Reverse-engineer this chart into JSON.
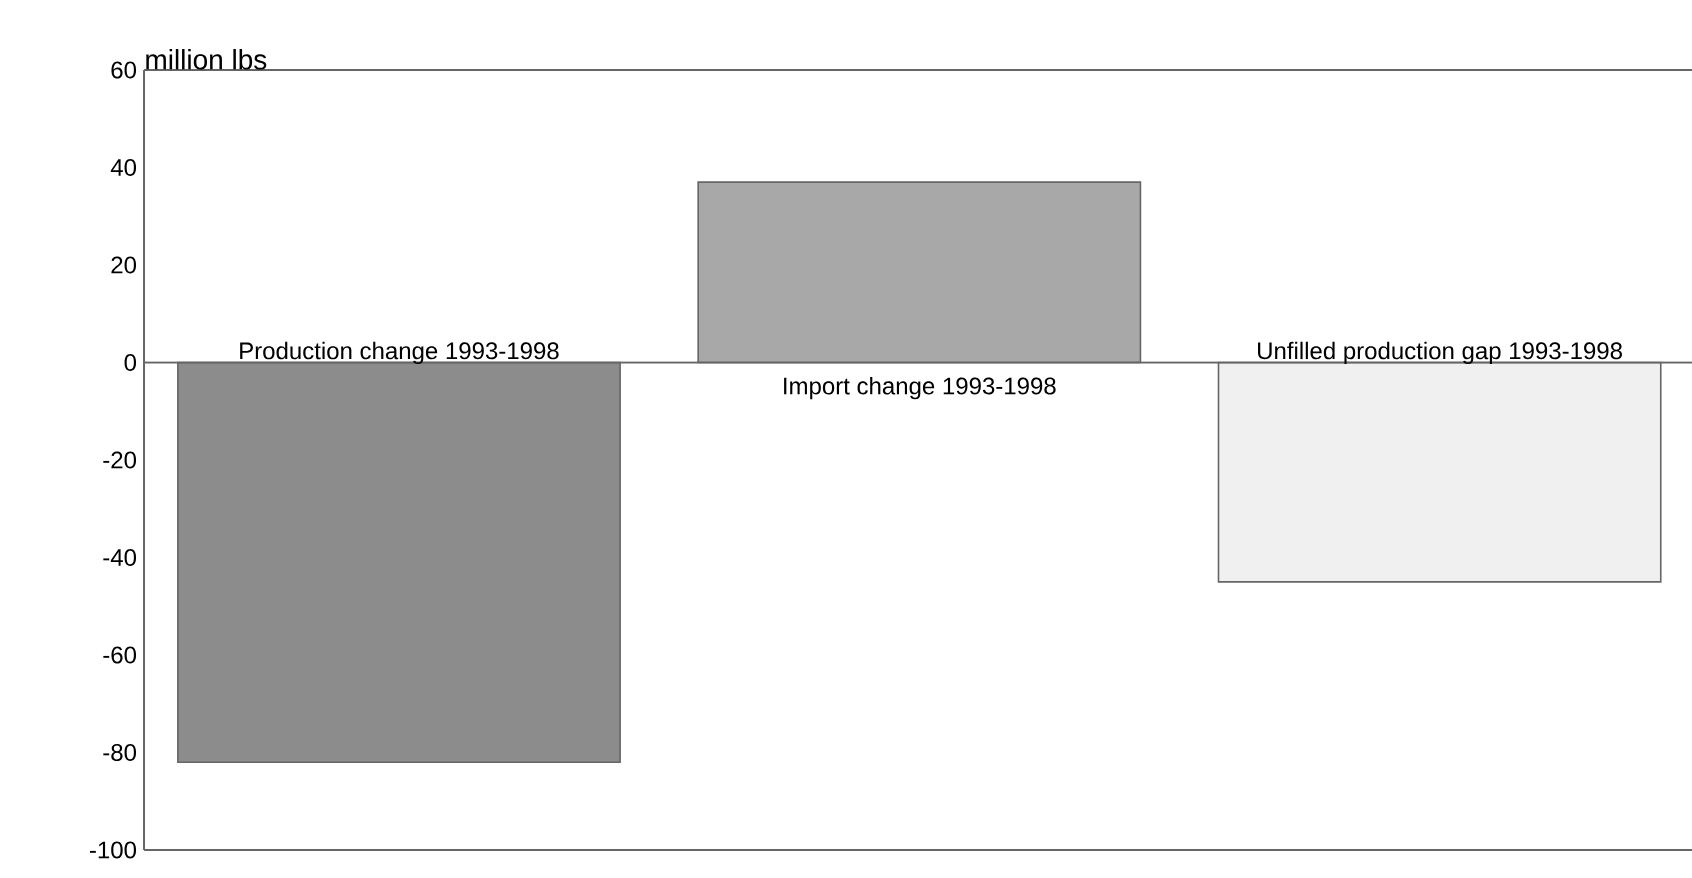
{
  "chart_data": {
    "type": "bar",
    "ylabel": "million lbs",
    "categories": [
      "Production change 1993-1998",
      "Import change 1993-1998",
      "Unfilled production gap 1993-1998"
    ],
    "values": [
      -82,
      37,
      -45
    ],
    "colors": [
      "#8c8c8c",
      "#a8a8a8",
      "#f0f0f0"
    ],
    "ylim": [
      -100,
      60
    ],
    "yticks": [
      -100,
      -80,
      -60,
      -40,
      -20,
      0,
      20,
      40,
      60
    ],
    "grid": false
  }
}
